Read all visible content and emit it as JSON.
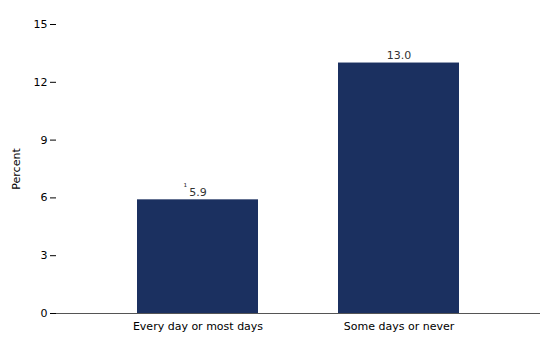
{
  "chart_data": {
    "type": "bar",
    "categories": [
      "Every day or most days",
      "Some days or never"
    ],
    "values": [
      5.9,
      13.0
    ],
    "value_labels": [
      "5.9",
      "13.0"
    ],
    "data_labels": true,
    "color": "#1B3060",
    "ylabel": "Percent",
    "ylim": [
      0,
      15
    ],
    "yticks": [
      0,
      3,
      6,
      9,
      12,
      15
    ],
    "grid": false,
    "annotations": [
      {
        "category": "Every day or most days",
        "text": "¹"
      }
    ]
  }
}
